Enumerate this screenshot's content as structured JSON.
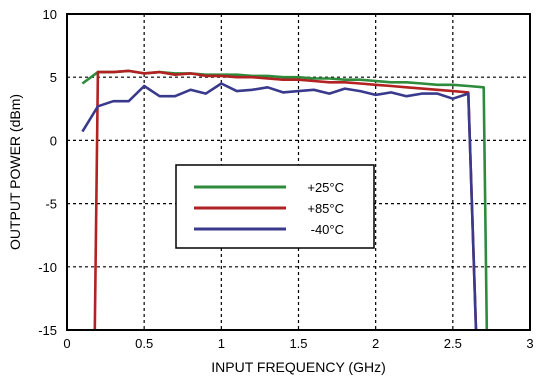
{
  "chart_data": {
    "type": "line",
    "title": "",
    "xlabel": "INPUT FREQUENCY (GHz)",
    "ylabel": "OUTPUT POWER (dBm)",
    "xlim": [
      0,
      3
    ],
    "ylim": [
      -15,
      10
    ],
    "x_ticks": [
      "0",
      "0.5",
      "1",
      "1.5",
      "2",
      "2.5",
      "3"
    ],
    "y_ticks": [
      "10",
      "5",
      "0",
      "-5",
      "-10",
      "-15"
    ],
    "x_tick_values": [
      0,
      0.5,
      1,
      1.5,
      2,
      2.5,
      3
    ],
    "y_tick_values": [
      10,
      5,
      0,
      -5,
      -10,
      -15
    ],
    "grid": "dashed",
    "legend_position": "center-left",
    "series": [
      {
        "name": "+25°C",
        "color": "#2e8b3c",
        "points": [
          [
            0.1,
            4.5
          ],
          [
            0.2,
            5.4
          ],
          [
            0.3,
            5.4
          ],
          [
            0.4,
            5.5
          ],
          [
            0.5,
            5.3
          ],
          [
            0.6,
            5.4
          ],
          [
            0.7,
            5.3
          ],
          [
            0.8,
            5.3
          ],
          [
            0.9,
            5.2
          ],
          [
            1.0,
            5.2
          ],
          [
            1.1,
            5.2
          ],
          [
            1.2,
            5.1
          ],
          [
            1.3,
            5.1
          ],
          [
            1.4,
            5.0
          ],
          [
            1.5,
            5.0
          ],
          [
            1.6,
            4.9
          ],
          [
            1.7,
            4.9
          ],
          [
            1.8,
            4.8
          ],
          [
            1.9,
            4.8
          ],
          [
            2.0,
            4.7
          ],
          [
            2.1,
            4.6
          ],
          [
            2.2,
            4.6
          ],
          [
            2.3,
            4.5
          ],
          [
            2.4,
            4.4
          ],
          [
            2.5,
            4.4
          ],
          [
            2.6,
            4.3
          ],
          [
            2.7,
            4.2
          ],
          [
            2.72,
            -15
          ]
        ]
      },
      {
        "name": "+85°C",
        "color": "#b22222",
        "points": [
          [
            0.18,
            -15
          ],
          [
            0.2,
            5.4
          ],
          [
            0.3,
            5.4
          ],
          [
            0.4,
            5.5
          ],
          [
            0.5,
            5.3
          ],
          [
            0.6,
            5.4
          ],
          [
            0.7,
            5.2
          ],
          [
            0.8,
            5.3
          ],
          [
            0.9,
            5.1
          ],
          [
            1.0,
            5.1
          ],
          [
            1.1,
            5.0
          ],
          [
            1.2,
            5.0
          ],
          [
            1.3,
            4.9
          ],
          [
            1.4,
            4.8
          ],
          [
            1.5,
            4.8
          ],
          [
            1.6,
            4.7
          ],
          [
            1.7,
            4.6
          ],
          [
            1.8,
            4.6
          ],
          [
            1.9,
            4.5
          ],
          [
            2.0,
            4.4
          ],
          [
            2.1,
            4.3
          ],
          [
            2.2,
            4.2
          ],
          [
            2.3,
            4.1
          ],
          [
            2.4,
            4.0
          ],
          [
            2.5,
            3.9
          ],
          [
            2.6,
            3.8
          ],
          [
            2.65,
            -15
          ]
        ]
      },
      {
        "name": "-40°C",
        "color": "#3a3a8c",
        "points": [
          [
            0.1,
            0.7
          ],
          [
            0.2,
            2.7
          ],
          [
            0.3,
            3.1
          ],
          [
            0.4,
            3.1
          ],
          [
            0.5,
            4.3
          ],
          [
            0.6,
            3.5
          ],
          [
            0.7,
            3.5
          ],
          [
            0.8,
            4.0
          ],
          [
            0.9,
            3.7
          ],
          [
            1.0,
            4.5
          ],
          [
            1.1,
            3.9
          ],
          [
            1.2,
            4.0
          ],
          [
            1.3,
            4.2
          ],
          [
            1.4,
            3.8
          ],
          [
            1.5,
            3.9
          ],
          [
            1.6,
            4.0
          ],
          [
            1.7,
            3.7
          ],
          [
            1.8,
            4.1
          ],
          [
            1.9,
            3.9
          ],
          [
            2.0,
            3.6
          ],
          [
            2.1,
            3.8
          ],
          [
            2.2,
            3.5
          ],
          [
            2.3,
            3.7
          ],
          [
            2.4,
            3.7
          ],
          [
            2.5,
            3.3
          ],
          [
            2.6,
            3.7
          ],
          [
            2.65,
            -15
          ]
        ]
      }
    ]
  }
}
